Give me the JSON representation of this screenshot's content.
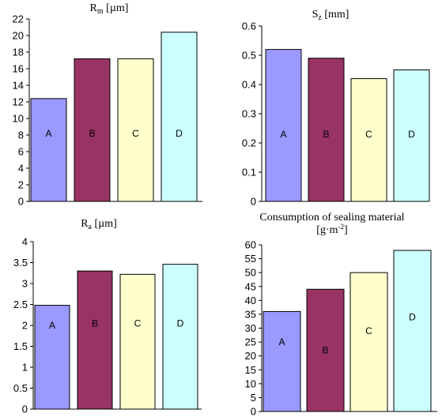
{
  "chart_data": [
    {
      "type": "bar",
      "title": "R<sub>m</sub> [µm]",
      "title_text": "Rm [µm]",
      "categories": [
        "A",
        "B",
        "C",
        "D"
      ],
      "values": [
        12.4,
        17.2,
        17.2,
        20.4
      ],
      "ylim": [
        0,
        22
      ],
      "yticks": [
        0,
        2,
        4,
        6,
        8,
        10,
        12,
        14,
        16,
        18,
        20,
        22
      ],
      "ytick_labels": [
        "0",
        "2",
        "4",
        "6",
        "8",
        "10",
        "12",
        "14",
        "16",
        "18",
        "20",
        "22"
      ],
      "label_value": 8.2
    },
    {
      "type": "bar",
      "title_text": "Sz [mm]",
      "categories": [
        "A",
        "B",
        "C",
        "D"
      ],
      "values": [
        0.52,
        0.49,
        0.42,
        0.45
      ],
      "ylim": [
        0,
        0.6
      ],
      "yticks": [
        0,
        0.1,
        0.2,
        0.3,
        0.4,
        0.5,
        0.6
      ],
      "ytick_labels": [
        "0",
        "0.1",
        "0.2",
        "0.3",
        "0.4",
        "0.5",
        "0.6"
      ],
      "label_value": 0.23
    },
    {
      "type": "bar",
      "title_text": "Ra [µm]",
      "categories": [
        "A",
        "B",
        "C",
        "D"
      ],
      "values": [
        2.48,
        3.3,
        3.22,
        3.46
      ],
      "ylim": [
        0,
        4
      ],
      "yticks": [
        0,
        0.5,
        1,
        1.5,
        2,
        2.5,
        3,
        3.5,
        4
      ],
      "ytick_labels": [
        "0",
        "0.5",
        "1",
        "1.5",
        "2",
        "2.5",
        "3",
        "3.5",
        "4"
      ],
      "label_values": [
        2.0,
        2.05,
        2.05,
        2.05
      ]
    },
    {
      "type": "bar",
      "title_text": "Consumption of sealing material",
      "title_line2": "[g·m⁻²]",
      "categories": [
        "A",
        "B",
        "C",
        "D"
      ],
      "values": [
        36,
        44,
        50,
        58
      ],
      "ylim": [
        0,
        60
      ],
      "yticks": [
        0,
        5,
        10,
        15,
        20,
        25,
        30,
        35,
        40,
        45,
        50,
        55,
        60
      ],
      "ytick_labels": [
        "0",
        "5",
        "10",
        "15",
        "20",
        "25",
        "30",
        "35",
        "40",
        "45",
        "50",
        "55",
        "60"
      ],
      "label_values": [
        25,
        22,
        29,
        34
      ]
    }
  ],
  "colors": {
    "A": "#9999ff",
    "B": "#993366",
    "C": "#ffffcc",
    "D": "#ccffff"
  }
}
